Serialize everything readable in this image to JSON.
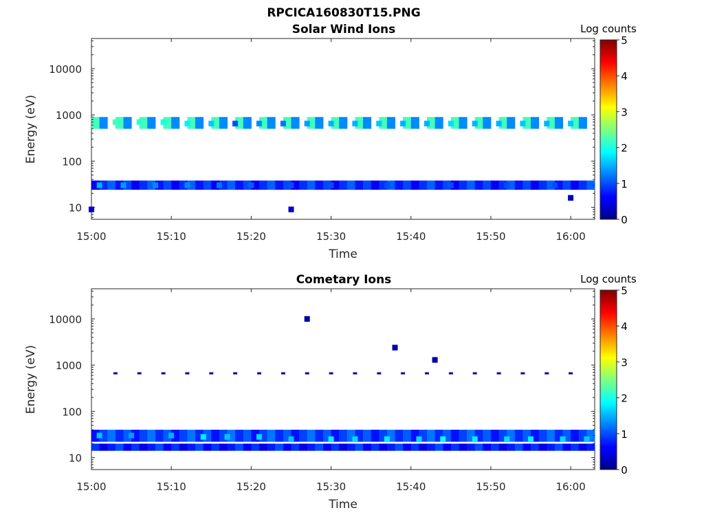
{
  "figure": {
    "title": "RPCICA160830T15.PNG"
  },
  "colormap": "jet",
  "chart_data": [
    {
      "type": "heatmap",
      "title": "Solar Wind Ions",
      "xlabel": "Time",
      "ylabel": "Energy (eV)",
      "colorbar_label": "Log counts",
      "y_scale": "log",
      "ylim": [
        5.5,
        45000
      ],
      "xlim": [
        "15:00",
        "16:03"
      ],
      "x_ticks": [
        "15:00",
        "15:10",
        "15:20",
        "15:30",
        "15:40",
        "15:50",
        "16:00"
      ],
      "y_ticks": [
        "10",
        "100",
        "1000",
        "10000"
      ],
      "y_tick_values": [
        10,
        100,
        1000,
        10000
      ],
      "colorbar_ticks": [
        "0",
        "1",
        "2",
        "3",
        "4",
        "5"
      ],
      "colorbar_range": [
        0,
        5
      ],
      "bands": [
        {
          "energy_low": 24,
          "energy_high": 38,
          "level": 0.6
        },
        {
          "energy_low": 500,
          "energy_high": 900,
          "level": 1.6
        }
      ],
      "cells": [
        [
          "15:03",
          700,
          2.2
        ],
        [
          "15:06",
          700,
          2.1
        ],
        [
          "15:09",
          700,
          2.0
        ],
        [
          "15:12",
          650,
          1.8
        ],
        [
          "15:15",
          650,
          1.6
        ],
        [
          "15:18",
          650,
          1.0
        ],
        [
          "15:21",
          650,
          1.3
        ],
        [
          "15:24",
          650,
          1.2
        ],
        [
          "15:27",
          650,
          1.4
        ],
        [
          "15:30",
          650,
          1.5
        ],
        [
          "15:33",
          650,
          1.5
        ],
        [
          "15:36",
          650,
          1.6
        ],
        [
          "15:39",
          650,
          1.5
        ],
        [
          "15:42",
          650,
          1.5
        ],
        [
          "15:45",
          650,
          1.7
        ],
        [
          "15:48",
          650,
          1.5
        ],
        [
          "15:51",
          650,
          1.5
        ],
        [
          "15:54",
          650,
          1.6
        ],
        [
          "15:57",
          650,
          1.5
        ],
        [
          "16:00",
          650,
          1.6
        ],
        [
          "15:01",
          30,
          1.5
        ],
        [
          "15:04",
          30,
          1.4
        ],
        [
          "15:08",
          30,
          1.3
        ],
        [
          "15:12",
          30,
          1.3
        ],
        [
          "15:16",
          30,
          1.2
        ],
        [
          "15:20",
          30,
          1.1
        ],
        [
          "15:25",
          30,
          1.0
        ],
        [
          "15:30",
          30,
          1.0
        ],
        [
          "15:37",
          30,
          1.0
        ],
        [
          "15:45",
          30,
          1.0
        ],
        [
          "15:52",
          30,
          1.0
        ],
        [
          "15:58",
          30,
          1.0
        ],
        [
          "15:00",
          9,
          0.4
        ],
        [
          "15:25",
          9,
          0.4
        ],
        [
          "16:00",
          16,
          0.3
        ]
      ]
    },
    {
      "type": "heatmap",
      "title": "Cometary Ions",
      "xlabel": "Time",
      "ylabel": "Energy (eV)",
      "colorbar_label": "Log counts",
      "y_scale": "log",
      "ylim": [
        5.5,
        45000
      ],
      "xlim": [
        "15:00",
        "16:03"
      ],
      "x_ticks": [
        "15:00",
        "15:10",
        "15:20",
        "15:30",
        "15:40",
        "15:50",
        "16:00"
      ],
      "y_ticks": [
        "10",
        "100",
        "1000",
        "10000"
      ],
      "y_tick_values": [
        10,
        100,
        1000,
        10000
      ],
      "colorbar_ticks": [
        "0",
        "1",
        "2",
        "3",
        "4",
        "5"
      ],
      "colorbar_range": [
        0,
        5
      ],
      "bands": [
        {
          "energy_low": 22,
          "energy_high": 40,
          "level": 0.7
        },
        {
          "energy_low": 14,
          "energy_high": 20,
          "level": 0.5
        }
      ],
      "cells": [
        [
          "15:01",
          30,
          1.6
        ],
        [
          "15:05",
          30,
          1.4
        ],
        [
          "15:10",
          30,
          1.5
        ],
        [
          "15:14",
          28,
          1.8
        ],
        [
          "15:17",
          28,
          1.6
        ],
        [
          "15:21",
          28,
          1.7
        ],
        [
          "15:25",
          25,
          1.6
        ],
        [
          "15:30",
          25,
          1.8
        ],
        [
          "15:33",
          25,
          1.7
        ],
        [
          "15:37",
          25,
          1.8
        ],
        [
          "15:41",
          25,
          1.7
        ],
        [
          "15:44",
          25,
          1.9
        ],
        [
          "15:48",
          25,
          1.8
        ],
        [
          "15:52",
          25,
          1.7
        ],
        [
          "15:55",
          25,
          1.8
        ],
        [
          "15:59",
          25,
          1.7
        ],
        [
          "16:02",
          25,
          1.6
        ],
        [
          "15:27",
          10000,
          0.2
        ],
        [
          "15:38",
          2400,
          0.2
        ],
        [
          "15:43",
          1300,
          0.2
        ]
      ],
      "sparse_1keV_line": {
        "energy": 700,
        "level": 0.2
      }
    }
  ]
}
